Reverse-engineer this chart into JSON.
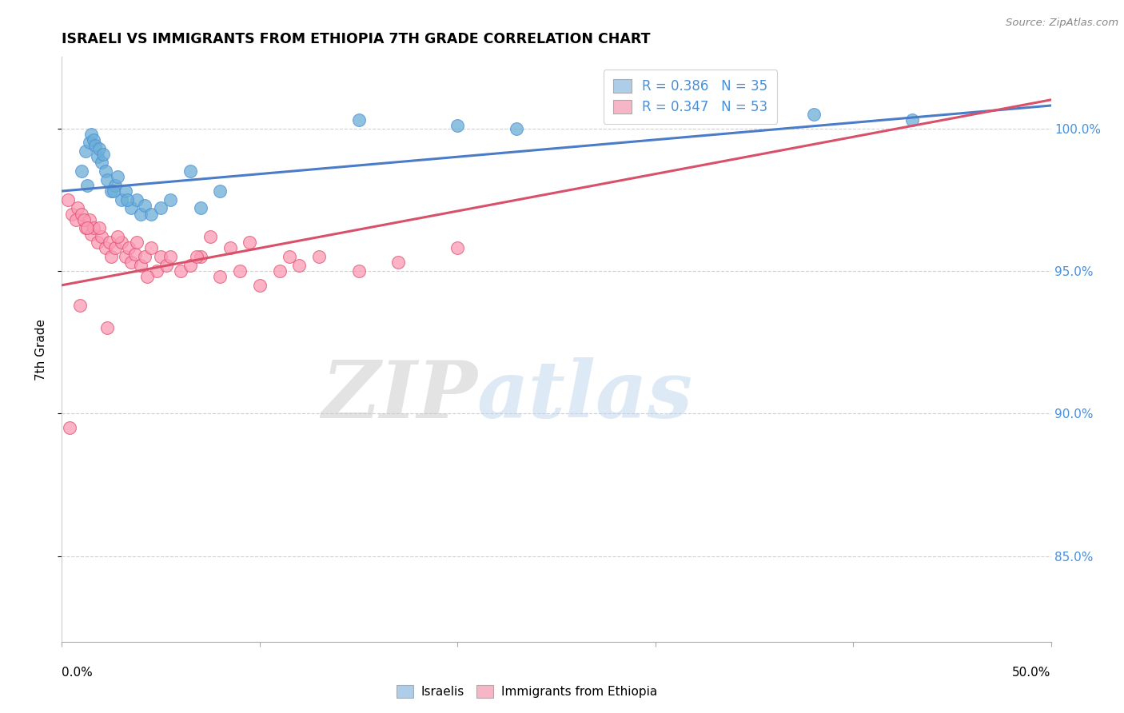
{
  "title": "ISRAELI VS IMMIGRANTS FROM ETHIOPIA 7TH GRADE CORRELATION CHART",
  "source": "Source: ZipAtlas.com",
  "ylabel": "7th Grade",
  "ylabel_ticks": [
    85.0,
    90.0,
    95.0,
    100.0
  ],
  "xmin": 0.0,
  "xmax": 50.0,
  "ymin": 82.0,
  "ymax": 102.5,
  "legend1_label_r": "R = 0.386",
  "legend1_label_n": "N = 35",
  "legend2_label_r": "R = 0.347",
  "legend2_label_n": "N = 53",
  "legend1_face": "#aecde8",
  "legend2_face": "#f7b6c8",
  "blue_dot_color": "#6baed6",
  "blue_dot_edge": "#4a90d9",
  "pink_dot_color": "#fc9ab4",
  "pink_dot_edge": "#e05070",
  "blue_line_color": "#4a7cc7",
  "pink_line_color": "#d9506a",
  "watermark_zip": "ZIP",
  "watermark_atlas": "atlas",
  "legend_bottom_label1": "Israelis",
  "legend_bottom_label2": "Immigrants from Ethiopia",
  "israelis_x": [
    1.0,
    1.2,
    1.4,
    1.5,
    1.6,
    1.7,
    1.8,
    1.9,
    2.0,
    2.1,
    2.2,
    2.3,
    2.5,
    2.7,
    2.8,
    3.0,
    3.2,
    3.5,
    3.8,
    4.0,
    4.2,
    4.5,
    5.0,
    5.5,
    6.5,
    8.0,
    15.0,
    20.0,
    23.0,
    38.0,
    43.0,
    1.3,
    2.6,
    3.3,
    7.0
  ],
  "israelis_y": [
    98.5,
    99.2,
    99.5,
    99.8,
    99.6,
    99.4,
    99.0,
    99.3,
    98.8,
    99.1,
    98.5,
    98.2,
    97.8,
    98.0,
    98.3,
    97.5,
    97.8,
    97.2,
    97.5,
    97.0,
    97.3,
    97.0,
    97.2,
    97.5,
    98.5,
    97.8,
    100.3,
    100.1,
    100.0,
    100.5,
    100.3,
    98.0,
    97.8,
    97.5,
    97.2
  ],
  "ethiopia_x": [
    0.3,
    0.5,
    0.7,
    0.8,
    1.0,
    1.2,
    1.4,
    1.5,
    1.6,
    1.8,
    2.0,
    2.2,
    2.4,
    2.5,
    2.7,
    3.0,
    3.2,
    3.4,
    3.5,
    3.7,
    4.0,
    4.2,
    4.5,
    4.8,
    5.0,
    5.3,
    5.5,
    6.0,
    6.5,
    7.0,
    8.0,
    9.0,
    10.0,
    11.0,
    12.0,
    13.0,
    15.0,
    1.1,
    1.3,
    1.9,
    2.8,
    3.8,
    6.8,
    8.5,
    0.4,
    0.9,
    2.3,
    4.3,
    7.5,
    9.5,
    11.5,
    17.0,
    20.0
  ],
  "ethiopia_y": [
    97.5,
    97.0,
    96.8,
    97.2,
    97.0,
    96.5,
    96.8,
    96.3,
    96.5,
    96.0,
    96.2,
    95.8,
    96.0,
    95.5,
    95.8,
    96.0,
    95.5,
    95.8,
    95.3,
    95.6,
    95.2,
    95.5,
    95.8,
    95.0,
    95.5,
    95.2,
    95.5,
    95.0,
    95.2,
    95.5,
    94.8,
    95.0,
    94.5,
    95.0,
    95.2,
    95.5,
    95.0,
    96.8,
    96.5,
    96.5,
    96.2,
    96.0,
    95.5,
    95.8,
    89.5,
    93.8,
    93.0,
    94.8,
    96.2,
    96.0,
    95.5,
    95.3,
    95.8
  ],
  "blue_line_x": [
    0.0,
    50.0
  ],
  "blue_line_y": [
    97.8,
    100.8
  ],
  "pink_line_x": [
    0.0,
    50.0
  ],
  "pink_line_y": [
    94.5,
    101.0
  ]
}
